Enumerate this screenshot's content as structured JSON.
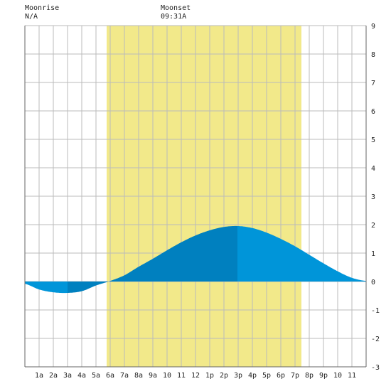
{
  "header": {
    "moonrise_label": "Moonrise",
    "moonrise_value": "N/A",
    "moonset_label": "Moonset",
    "moonset_value": "09:31A"
  },
  "colors": {
    "daylight": "#f2e98a",
    "tide_light": "#0095d9",
    "tide_dark": "#0080bf",
    "grid": "#bbbbbb",
    "axis": "#666666"
  },
  "chart_data": {
    "type": "area",
    "x_unit": "hour of day",
    "x_ticks": [
      "1a",
      "2a",
      "3a",
      "4a",
      "5a",
      "6a",
      "7a",
      "8a",
      "9a",
      "10",
      "11",
      "12",
      "1p",
      "2p",
      "3p",
      "4p",
      "5p",
      "6p",
      "7p",
      "8p",
      "9p",
      "10",
      "11"
    ],
    "ylim": [
      -3,
      9
    ],
    "y_ticks": [
      "-3",
      "-2",
      "-1",
      "0",
      "1",
      "2",
      "3",
      "4",
      "5",
      "6",
      "7",
      "8",
      "9"
    ],
    "daylight": {
      "start_hour": 5.75,
      "end_hour": 19.45
    },
    "extremes": [
      {
        "type": "low",
        "hour": 3.0,
        "value": -0.4
      },
      {
        "type": "high",
        "hour": 14.95,
        "value": 1.95
      }
    ],
    "series": [
      {
        "x": [
          0,
          1,
          2,
          3,
          4,
          5,
          6,
          7,
          8,
          9,
          10,
          11,
          12,
          13,
          14,
          15,
          16,
          17,
          18,
          19,
          20,
          21,
          22,
          23,
          24
        ],
        "y": [
          -0.08,
          -0.28,
          -0.38,
          -0.4,
          -0.34,
          -0.14,
          0.02,
          0.22,
          0.52,
          0.8,
          1.1,
          1.38,
          1.62,
          1.8,
          1.92,
          1.95,
          1.88,
          1.72,
          1.5,
          1.24,
          0.94,
          0.64,
          0.36,
          0.13,
          0.02
        ]
      }
    ]
  }
}
